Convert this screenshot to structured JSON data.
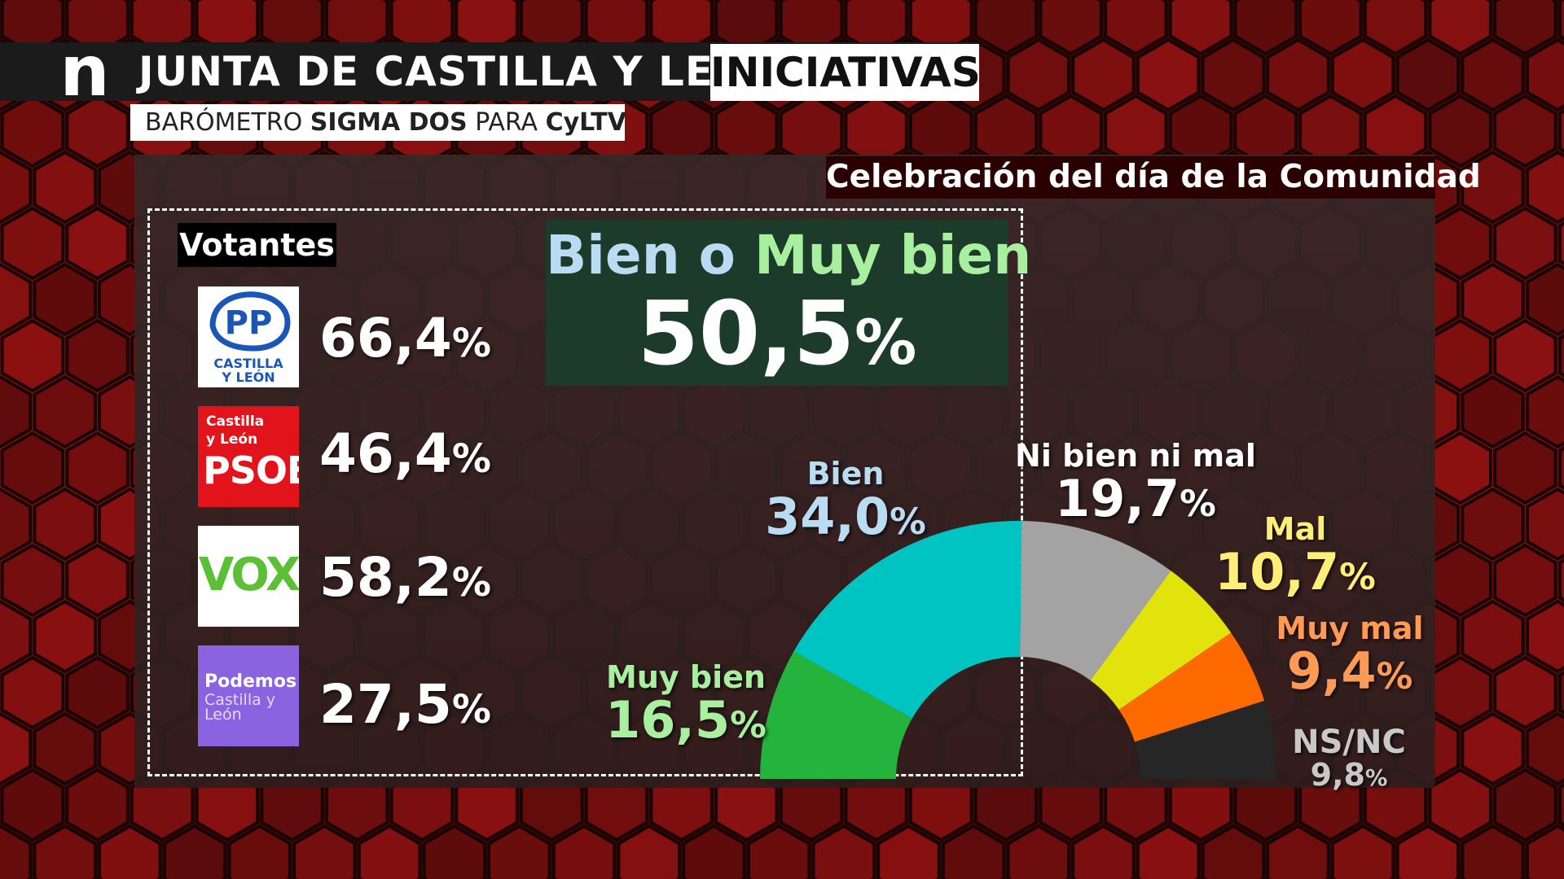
{
  "header": {
    "logo": "n",
    "title": "JUNTA DE CASTILLA Y LEÓN",
    "tag": "INICIATIVAS",
    "subtitle_pre": "BARÓMETRO ",
    "subtitle_bold": "SIGMA DOS",
    "subtitle_mid": " PARA ",
    "subtitle_bold2": "CyLTV"
  },
  "topic": "Celebración del día de la Comunidad",
  "voters": {
    "title": "Votantes",
    "parties": [
      {
        "name": "PP",
        "logo_text": [
          "PP",
          "CASTILLA",
          "Y LEÓN"
        ],
        "value": "66,4",
        "unit": "%"
      },
      {
        "name": "PSOE",
        "logo_text": [
          "Castilla",
          "y León",
          "PSOE"
        ],
        "value": "46,4",
        "unit": "%"
      },
      {
        "name": "VOX",
        "logo_text": [
          "VOX"
        ],
        "value": "58,2",
        "unit": "%"
      },
      {
        "name": "Podemos",
        "logo_text": [
          "Podemos",
          "Castilla y",
          "León"
        ],
        "value": "27,5",
        "unit": "%"
      }
    ]
  },
  "highlight": {
    "label_a": "Bien o ",
    "label_b": "Muy bien",
    "value": "50,5",
    "unit": "%",
    "color_a": "#b9dcf2",
    "color_b": "#a8f0a0"
  },
  "chart_data": {
    "type": "pie",
    "style": "semicircle-gauge",
    "title": "Celebración del día de la Comunidad",
    "slices": [
      {
        "label": "Muy bien",
        "value": 16.5,
        "display": "16,5",
        "color": "#24b33c",
        "label_color": "#a8f0a0"
      },
      {
        "label": "Bien",
        "value": 34.0,
        "display": "34,0",
        "color": "#00c4c2",
        "label_color": "#b9dcf2"
      },
      {
        "label": "Ni bien ni mal",
        "value": 19.7,
        "display": "19,7",
        "color": "#a3a3a3",
        "label_color": "#ffffff"
      },
      {
        "label": "Mal",
        "value": 10.7,
        "display": "10,7",
        "color": "#e2e20c",
        "label_color": "#ffee77"
      },
      {
        "label": "Muy mal",
        "value": 9.4,
        "display": "9,4",
        "color": "#ff6a00",
        "label_color": "#ff9a55"
      },
      {
        "label": "NS/NC",
        "value": 9.8,
        "display": "9,8",
        "color": "#262626",
        "label_color": "#c8c8c8"
      }
    ],
    "unit": "%"
  }
}
